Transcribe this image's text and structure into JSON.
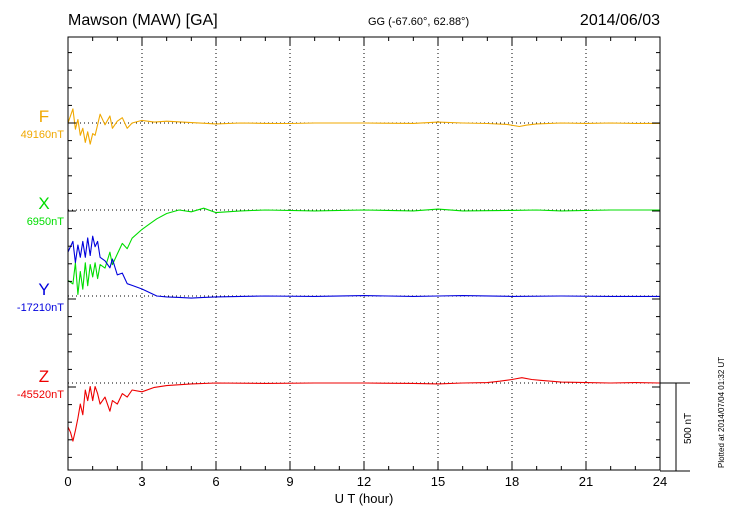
{
  "header": {
    "station": "Mawson (MAW)  [GA]",
    "coords": "GG (-67.60°,  62.88°)",
    "date": "2014/06/03"
  },
  "footer": {
    "plotted": "Plotted at 2014/07/04 01:32 UT"
  },
  "chart_data": {
    "type": "line",
    "xlabel": "U T (hour)",
    "xlim": [
      0,
      24
    ],
    "xticks": [
      0,
      3,
      6,
      9,
      12,
      15,
      18,
      21,
      24
    ],
    "scale_bar": {
      "value": 500,
      "label": "500 nT"
    },
    "series": [
      {
        "name": "F",
        "baseline_label": "49160nT",
        "baseline": 49160,
        "color": "#f0a800",
        "x": [
          0,
          0.2,
          0.3,
          0.4,
          0.5,
          0.6,
          0.7,
          0.8,
          0.9,
          1.0,
          1.1,
          1.2,
          1.3,
          1.5,
          1.7,
          1.8,
          2.0,
          2.2,
          2.4,
          2.6,
          3.0,
          3.5,
          4.0,
          5.0,
          6.0,
          7.0,
          8.0,
          9.0,
          10.0,
          12.0,
          14.0,
          15.0,
          16.0,
          17.0,
          17.8,
          18.3,
          18.6,
          19.0,
          20.0,
          21.0,
          22.0,
          23.0,
          24.0
        ],
        "y": [
          49160,
          49240,
          49125,
          49180,
          49090,
          49130,
          49050,
          49110,
          49040,
          49100,
          49090,
          49150,
          49210,
          49150,
          49200,
          49130,
          49170,
          49190,
          49130,
          49160,
          49175,
          49165,
          49170,
          49162,
          49155,
          49160,
          49158,
          49157,
          49160,
          49160,
          49158,
          49165,
          49160,
          49157,
          49152,
          49140,
          49148,
          49155,
          49160,
          49158,
          49160,
          49158,
          49158
        ]
      },
      {
        "name": "X",
        "baseline_label": "6950nT",
        "baseline": 6950,
        "color": "#00dd00",
        "x": [
          0,
          0.2,
          0.3,
          0.4,
          0.5,
          0.6,
          0.7,
          0.8,
          0.9,
          1.0,
          1.1,
          1.2,
          1.3,
          1.5,
          1.7,
          1.8,
          2.0,
          2.2,
          2.4,
          2.6,
          3.0,
          3.3,
          3.6,
          4.0,
          4.5,
          5.0,
          5.5,
          6.0,
          7.0,
          8.0,
          10.0,
          12.0,
          14.0,
          15.0,
          16.0,
          18.0,
          19.0,
          20.0,
          22.0,
          24.0
        ],
        "y": [
          6550,
          6530,
          6650,
          6470,
          6600,
          6500,
          6650,
          6520,
          6640,
          6570,
          6650,
          6560,
          6640,
          6620,
          6710,
          6640,
          6700,
          6760,
          6730,
          6790,
          6840,
          6870,
          6900,
          6930,
          6950,
          6940,
          6960,
          6935,
          6945,
          6950,
          6945,
          6950,
          6945,
          6955,
          6945,
          6948,
          6950,
          6945,
          6950,
          6950
        ]
      },
      {
        "name": "Y",
        "baseline_label": "-17210nT",
        "baseline": -17210,
        "color": "#0000dd",
        "x": [
          0,
          0.2,
          0.3,
          0.4,
          0.5,
          0.6,
          0.7,
          0.8,
          0.9,
          1.0,
          1.1,
          1.2,
          1.3,
          1.5,
          1.7,
          1.8,
          2.0,
          2.2,
          2.4,
          2.6,
          3.0,
          3.3,
          3.6,
          4.0,
          4.5,
          5.0,
          5.5,
          6.0,
          7.0,
          8.0,
          10.0,
          12.0,
          14.0,
          15.0,
          16.0,
          18.0,
          20.0,
          22.0,
          24.0
        ],
        "y": [
          -16960,
          -16900,
          -17020,
          -16920,
          -16990,
          -16900,
          -16990,
          -16880,
          -16980,
          -16870,
          -16930,
          -16900,
          -16990,
          -17010,
          -17050,
          -17000,
          -17090,
          -17080,
          -17140,
          -17150,
          -17170,
          -17190,
          -17210,
          -17215,
          -17218,
          -17222,
          -17218,
          -17215,
          -17212,
          -17210,
          -17212,
          -17208,
          -17212,
          -17210,
          -17208,
          -17212,
          -17210,
          -17212,
          -17212
        ]
      },
      {
        "name": "Z",
        "baseline_label": "-45520nT",
        "baseline": -45520,
        "color": "#ee0000",
        "x": [
          0,
          0.1,
          0.2,
          0.3,
          0.4,
          0.5,
          0.6,
          0.7,
          0.8,
          0.9,
          1.0,
          1.1,
          1.2,
          1.3,
          1.5,
          1.7,
          1.8,
          2.0,
          2.2,
          2.4,
          2.6,
          3.0,
          3.5,
          4.0,
          5.0,
          6.0,
          8.0,
          10.0,
          12.0,
          14.0,
          15.0,
          16.0,
          17.0,
          17.5,
          18.0,
          18.4,
          18.8,
          19.2,
          20.0,
          21.0,
          22.0,
          23.0,
          24.0
        ],
        "y": [
          -45770,
          -45800,
          -45850,
          -45790,
          -45720,
          -45640,
          -45700,
          -45560,
          -45620,
          -45540,
          -45620,
          -45540,
          -45580,
          -45640,
          -45600,
          -45680,
          -45620,
          -45640,
          -45580,
          -45600,
          -45560,
          -45570,
          -45545,
          -45535,
          -45525,
          -45520,
          -45522,
          -45520,
          -45520,
          -45522,
          -45525,
          -45520,
          -45518,
          -45510,
          -45500,
          -45490,
          -45500,
          -45505,
          -45515,
          -45518,
          -45520,
          -45518,
          -45520
        ]
      }
    ]
  }
}
